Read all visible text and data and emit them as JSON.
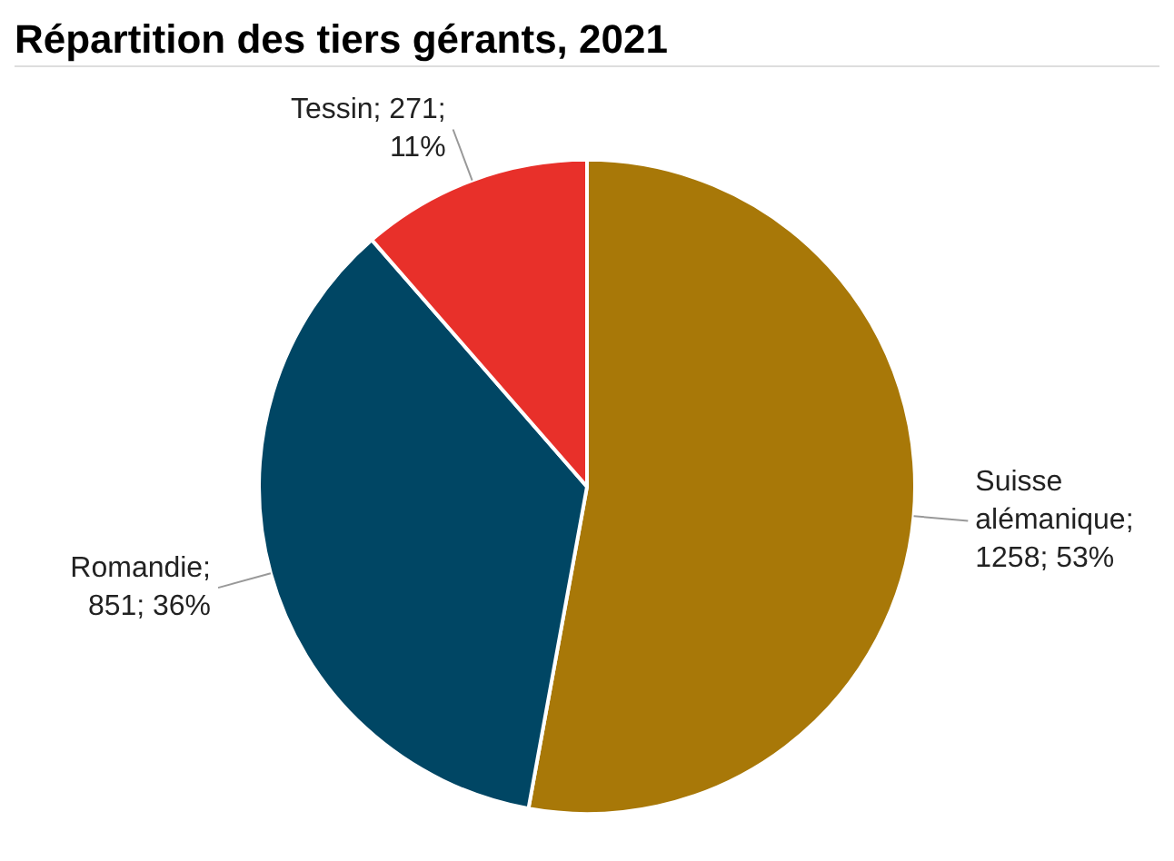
{
  "chart_data": {
    "type": "pie",
    "title": "Répartition des tiers gérants, 2021",
    "categories": [
      "Suisse alémanique",
      "Romandie",
      "Tessin"
    ],
    "values": [
      1258,
      851,
      271
    ],
    "colors": [
      "#a87808",
      "#004664",
      "#e8302a"
    ],
    "value_labels": [
      "; 1258; 53%",
      "; 851; 36%",
      "; 271; 11%"
    ],
    "legend": false
  }
}
